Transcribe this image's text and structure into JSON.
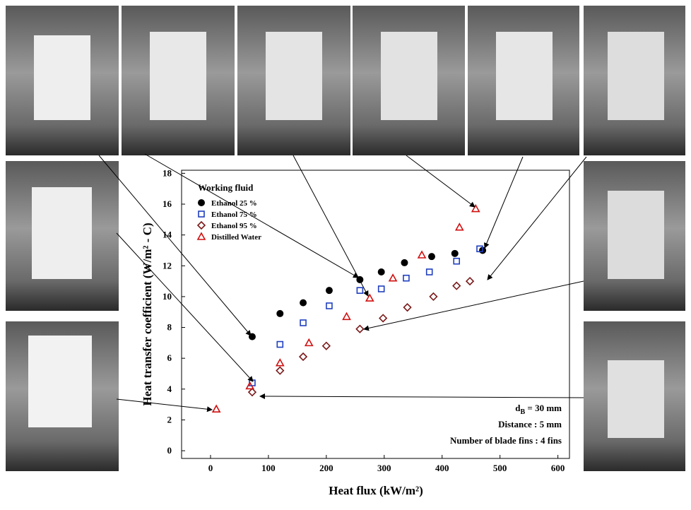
{
  "chart_data": {
    "type": "scatter",
    "y_label": "Heat transfer coefficient (W/m² - C)",
    "x_label": "Heat flux (kW/m²)",
    "legend_title": "Working fluid",
    "annotations": [
      {
        "symbol": "d",
        "subscript": "B",
        "text": " = 30 mm"
      },
      {
        "text": "Distance : 5 mm"
      },
      {
        "text": "Number of blade fins : 4 fins"
      }
    ],
    "xlim": [
      -50,
      620
    ],
    "ylim": [
      -0.5,
      18.2
    ],
    "xticks": [
      0,
      100,
      200,
      300,
      400,
      500,
      600
    ],
    "yticks": [
      0,
      2,
      4,
      6,
      8,
      10,
      12,
      14,
      16,
      18
    ],
    "legend": "upper left",
    "series": [
      {
        "name": "Ethanol 25 %",
        "color": "#000000",
        "marker": "circle",
        "filled": true,
        "x": [
          72,
          120,
          160,
          205,
          258,
          295,
          335,
          382,
          422,
          470
        ],
        "values": [
          7.4,
          8.9,
          9.6,
          10.4,
          11.1,
          11.6,
          12.2,
          12.6,
          12.8,
          13.0
        ]
      },
      {
        "name": "Ethanol 75 %",
        "color": "#1f3fbf",
        "marker": "square",
        "filled": false,
        "x": [
          72,
          120,
          160,
          205,
          258,
          295,
          338,
          378,
          425,
          465
        ],
        "values": [
          4.4,
          6.9,
          8.3,
          9.4,
          10.4,
          10.5,
          11.2,
          11.6,
          12.3,
          13.1
        ]
      },
      {
        "name": "Ethanol 95 %",
        "color": "#7a1a1a",
        "marker": "diamond",
        "filled": false,
        "x": [
          72,
          120,
          160,
          200,
          258,
          298,
          340,
          385,
          425,
          448
        ],
        "values": [
          3.8,
          5.2,
          6.1,
          6.8,
          7.9,
          8.6,
          9.3,
          10.0,
          10.7,
          11.0
        ]
      },
      {
        "name": "Distilled Water",
        "color": "#d01010",
        "marker": "triangle",
        "filled": false,
        "x": [
          10,
          68,
          120,
          170,
          235,
          275,
          315,
          365,
          430,
          458
        ],
        "values": [
          2.7,
          4.2,
          5.7,
          7.0,
          8.7,
          9.9,
          11.2,
          12.7,
          14.5,
          15.7
        ]
      }
    ]
  }
}
